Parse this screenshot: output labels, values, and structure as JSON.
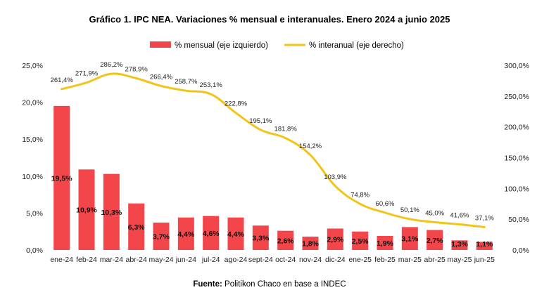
{
  "chart_data": {
    "type": "bar+line",
    "title": "Gráfico 1. IPC NEA. Variaciones % mensual e interanuales. Enero 2024 a junio 2025",
    "categories": [
      "ene-24",
      "feb-24",
      "mar-24",
      "abr-24",
      "may-24",
      "jun-24",
      "jul-24",
      "ago-24",
      "sept-24",
      "oct-24",
      "nov-24",
      "dic-24",
      "ene-25",
      "feb-25",
      "mar-25",
      "abr-25",
      "may-25",
      "jun-25"
    ],
    "series": [
      {
        "name": "% mensual (eje izquierdo)",
        "type": "bar",
        "axis": "left",
        "color": "#f2464b",
        "values": [
          19.5,
          10.9,
          10.3,
          6.3,
          3.7,
          4.4,
          4.6,
          4.4,
          3.3,
          2.6,
          1.8,
          2.9,
          2.5,
          1.9,
          3.1,
          2.7,
          1.3,
          1.1
        ],
        "labels": [
          "19,5%",
          "10,9%",
          "10,3%",
          "6,3%",
          "3,7%",
          "4,4%",
          "4,6%",
          "4,4%",
          "3,3%",
          "2,6%",
          "1,8%",
          "2,9%",
          "2,5%",
          "1,9%",
          "3,1%",
          "2,7%",
          "1,3%",
          "1,1%"
        ]
      },
      {
        "name": "% interanual (eje derecho)",
        "type": "line",
        "axis": "right",
        "color": "#f2c417",
        "values": [
          261.4,
          271.9,
          286.2,
          278.9,
          266.4,
          258.7,
          253.1,
          222.8,
          195.1,
          181.8,
          154.2,
          103.9,
          74.8,
          60.6,
          50.1,
          45.0,
          41.6,
          37.1
        ],
        "labels": [
          "261,4%",
          "271,9%",
          "286,2%",
          "278,9%",
          "266,4%",
          "258,7%",
          "253,1%",
          "222,8%",
          "195,1%",
          "181,8%",
          "154,2%",
          "103,9%",
          "74,8%",
          "60,6%",
          "50,1%",
          "45,0%",
          "41,6%",
          "37,1%"
        ]
      }
    ],
    "y_left": {
      "range": [
        0,
        25
      ],
      "ticks": [
        "0,0%",
        "5,0%",
        "10,0%",
        "15,0%",
        "20,0%",
        "25,0%"
      ]
    },
    "y_right": {
      "range": [
        0,
        300
      ],
      "ticks": [
        "0,0%",
        "50,0%",
        "100,0%",
        "150,0%",
        "200,0%",
        "250,0%",
        "300,0%"
      ]
    },
    "grid": false,
    "legend": "top-center"
  },
  "source": {
    "label": "Fuente:",
    "text": " Politikon Chaco en base a INDEC"
  }
}
